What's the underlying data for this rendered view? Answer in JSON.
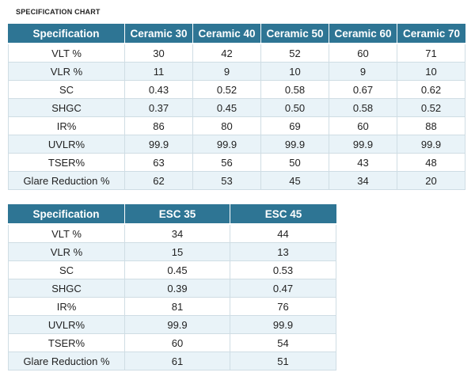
{
  "title": "SPECIFICATION CHART",
  "tables": [
    {
      "headers": [
        "Specification",
        "Ceramic 30",
        "Ceramic 40",
        "Ceramic 50",
        "Ceramic 60",
        "Ceramic 70"
      ],
      "rows": [
        [
          "VLT %",
          "30",
          "42",
          "52",
          "60",
          "71"
        ],
        [
          "VLR %",
          "11",
          "9",
          "10",
          "9",
          "10"
        ],
        [
          "SC",
          "0.43",
          "0.52",
          "0.58",
          "0.67",
          "0.62"
        ],
        [
          "SHGC",
          "0.37",
          "0.45",
          "0.50",
          "0.58",
          "0.52"
        ],
        [
          "IR%",
          "86",
          "80",
          "69",
          "60",
          "88"
        ],
        [
          "UVLR%",
          "99.9",
          "99.9",
          "99.9",
          "99.9",
          "99.9"
        ],
        [
          "TSER%",
          "63",
          "56",
          "50",
          "43",
          "48"
        ],
        [
          "Glare Reduction %",
          "62",
          "53",
          "45",
          "34",
          "20"
        ]
      ]
    },
    {
      "headers": [
        "Specification",
        "ESC 35",
        "ESC 45"
      ],
      "rows": [
        [
          "VLT %",
          "34",
          "44"
        ],
        [
          "VLR %",
          "15",
          "13"
        ],
        [
          "SC",
          "0.45",
          "0.53"
        ],
        [
          "SHGC",
          "0.39",
          "0.47"
        ],
        [
          "IR%",
          "81",
          "76"
        ],
        [
          "UVLR%",
          "99.9",
          "99.9"
        ],
        [
          "TSER%",
          "60",
          "54"
        ],
        [
          "Glare Reduction %",
          "61",
          "51"
        ]
      ]
    }
  ]
}
